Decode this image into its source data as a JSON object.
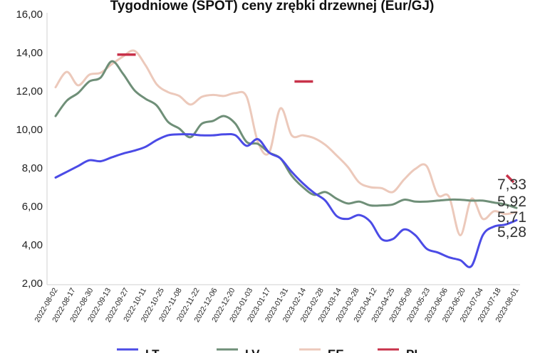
{
  "chart_data": {
    "type": "line",
    "title": "Tygodniowe (SPOT) ceny zrębki drzewnej (Eur/GJ)",
    "ylim": [
      2,
      16
    ],
    "yticks": [
      "2,00",
      "4,00",
      "6,00",
      "8,00",
      "10,00",
      "12,00",
      "14,00",
      "16,00"
    ],
    "grid": false,
    "legend_placement": "bottom",
    "x_tick_labels": [
      "2022-08-02",
      "2022-08-17",
      "2022-08-30",
      "2022-09-13",
      "2022-09-27",
      "2022-10-11",
      "2022-10-25",
      "2022-11-08",
      "2022-11-22",
      "2022-12-06",
      "2022-12-20",
      "2023-01-03",
      "2023-01-17",
      "2023-01-31",
      "2023-02-14",
      "2023-02-28",
      "2023-03-14",
      "2023-03-28",
      "2023-04-12",
      "2023-04-25",
      "2023-05-09",
      "2023-05-23",
      "2023-06-06",
      "2023-06-20",
      "2023-07-04",
      "2023-07-18",
      "2023-08-01"
    ],
    "series": [
      {
        "name": "LT",
        "color": "#4b4be6",
        "values": [
          7.5,
          7.8,
          8.1,
          8.4,
          8.35,
          8.55,
          8.75,
          8.9,
          9.1,
          9.45,
          9.7,
          9.75,
          9.75,
          9.7,
          9.7,
          9.75,
          9.7,
          9.15,
          9.5,
          8.8,
          8.5,
          7.8,
          7.2,
          6.7,
          6.3,
          5.5,
          5.35,
          5.55,
          5.2,
          4.3,
          4.3,
          4.8,
          4.5,
          3.8,
          3.6,
          3.35,
          3.2,
          2.9,
          4.5,
          4.95,
          5.05,
          5.28
        ]
      },
      {
        "name": "LV",
        "color": "#6f8f78",
        "values": [
          10.7,
          11.5,
          11.9,
          12.5,
          12.7,
          13.55,
          12.9,
          12.05,
          11.6,
          11.25,
          10.4,
          10.05,
          9.6,
          10.3,
          10.45,
          10.7,
          10.3,
          9.35,
          9.25,
          8.8,
          8.5,
          7.6,
          7.0,
          6.6,
          6.75,
          6.4,
          6.15,
          6.25,
          6.05,
          6.05,
          6.1,
          6.35,
          6.25,
          6.25,
          6.3,
          6.35,
          6.35,
          6.3,
          6.3,
          6.2,
          6.1,
          5.92
        ]
      },
      {
        "name": "EE",
        "color": "#ecc9bb",
        "values": [
          12.2,
          13.0,
          12.3,
          12.85,
          12.95,
          13.4,
          13.8,
          14.1,
          13.35,
          12.35,
          11.95,
          11.75,
          11.3,
          11.7,
          11.8,
          11.75,
          11.9,
          11.7,
          9.35,
          8.8,
          11.1,
          9.7,
          9.7,
          9.55,
          9.2,
          8.65,
          8.05,
          7.25,
          7.0,
          6.95,
          6.75,
          7.4,
          7.95,
          8.1,
          6.6,
          6.5,
          4.5,
          6.4,
          5.35,
          5.75,
          5.6,
          5.71
        ]
      },
      {
        "name": "PL",
        "color": "#c8324a",
        "values": [
          7.33
        ]
      }
    ],
    "pl_markers": [
      {
        "x_label": "2022-09-27",
        "value": 13.9
      },
      {
        "x_label": "2023-02-14",
        "value": 12.5
      },
      {
        "x_label": "2023-08-01",
        "value": 7.33
      }
    ],
    "end_labels": [
      "7,33",
      "5,92",
      "5,71",
      "5,28"
    ]
  }
}
